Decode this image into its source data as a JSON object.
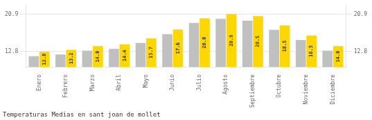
{
  "chart_data": {
    "type": "bar",
    "title": "Temperaturas Medias en sant joan de mollet",
    "categories": [
      "Enero",
      "Febrero",
      "Marzo",
      "Abril",
      "Mayo",
      "Junio",
      "Julio",
      "Agosto",
      "Septiembre",
      "Octubre",
      "Noviembre",
      "Diciembre"
    ],
    "series": [
      {
        "color": "#C0C0C0",
        "values": [
          11.8,
          12.2,
          13.0,
          13.4,
          14.7,
          16.6,
          19.0,
          19.9,
          19.5,
          17.5,
          15.3,
          13.0
        ]
      },
      {
        "color": "#FFD700",
        "values": [
          12.8,
          13.2,
          14.0,
          14.4,
          15.7,
          17.6,
          20.0,
          20.9,
          20.5,
          18.5,
          16.3,
          14.0
        ],
        "data_labels": true,
        "value_labels": [
          "12.8",
          "13.2",
          "14.0",
          "14.4",
          "15.7",
          "17.6",
          "20.0",
          "20.9",
          "20.5",
          "18.5",
          "16.3",
          "14.0"
        ]
      }
    ],
    "ylim": [
      9.5,
      22.8
    ],
    "yticks": [
      12.8,
      20.9
    ],
    "y2lim": [
      9.5,
      22.8
    ],
    "y2ticks": [
      12.8,
      20.9
    ],
    "grid": true
  }
}
